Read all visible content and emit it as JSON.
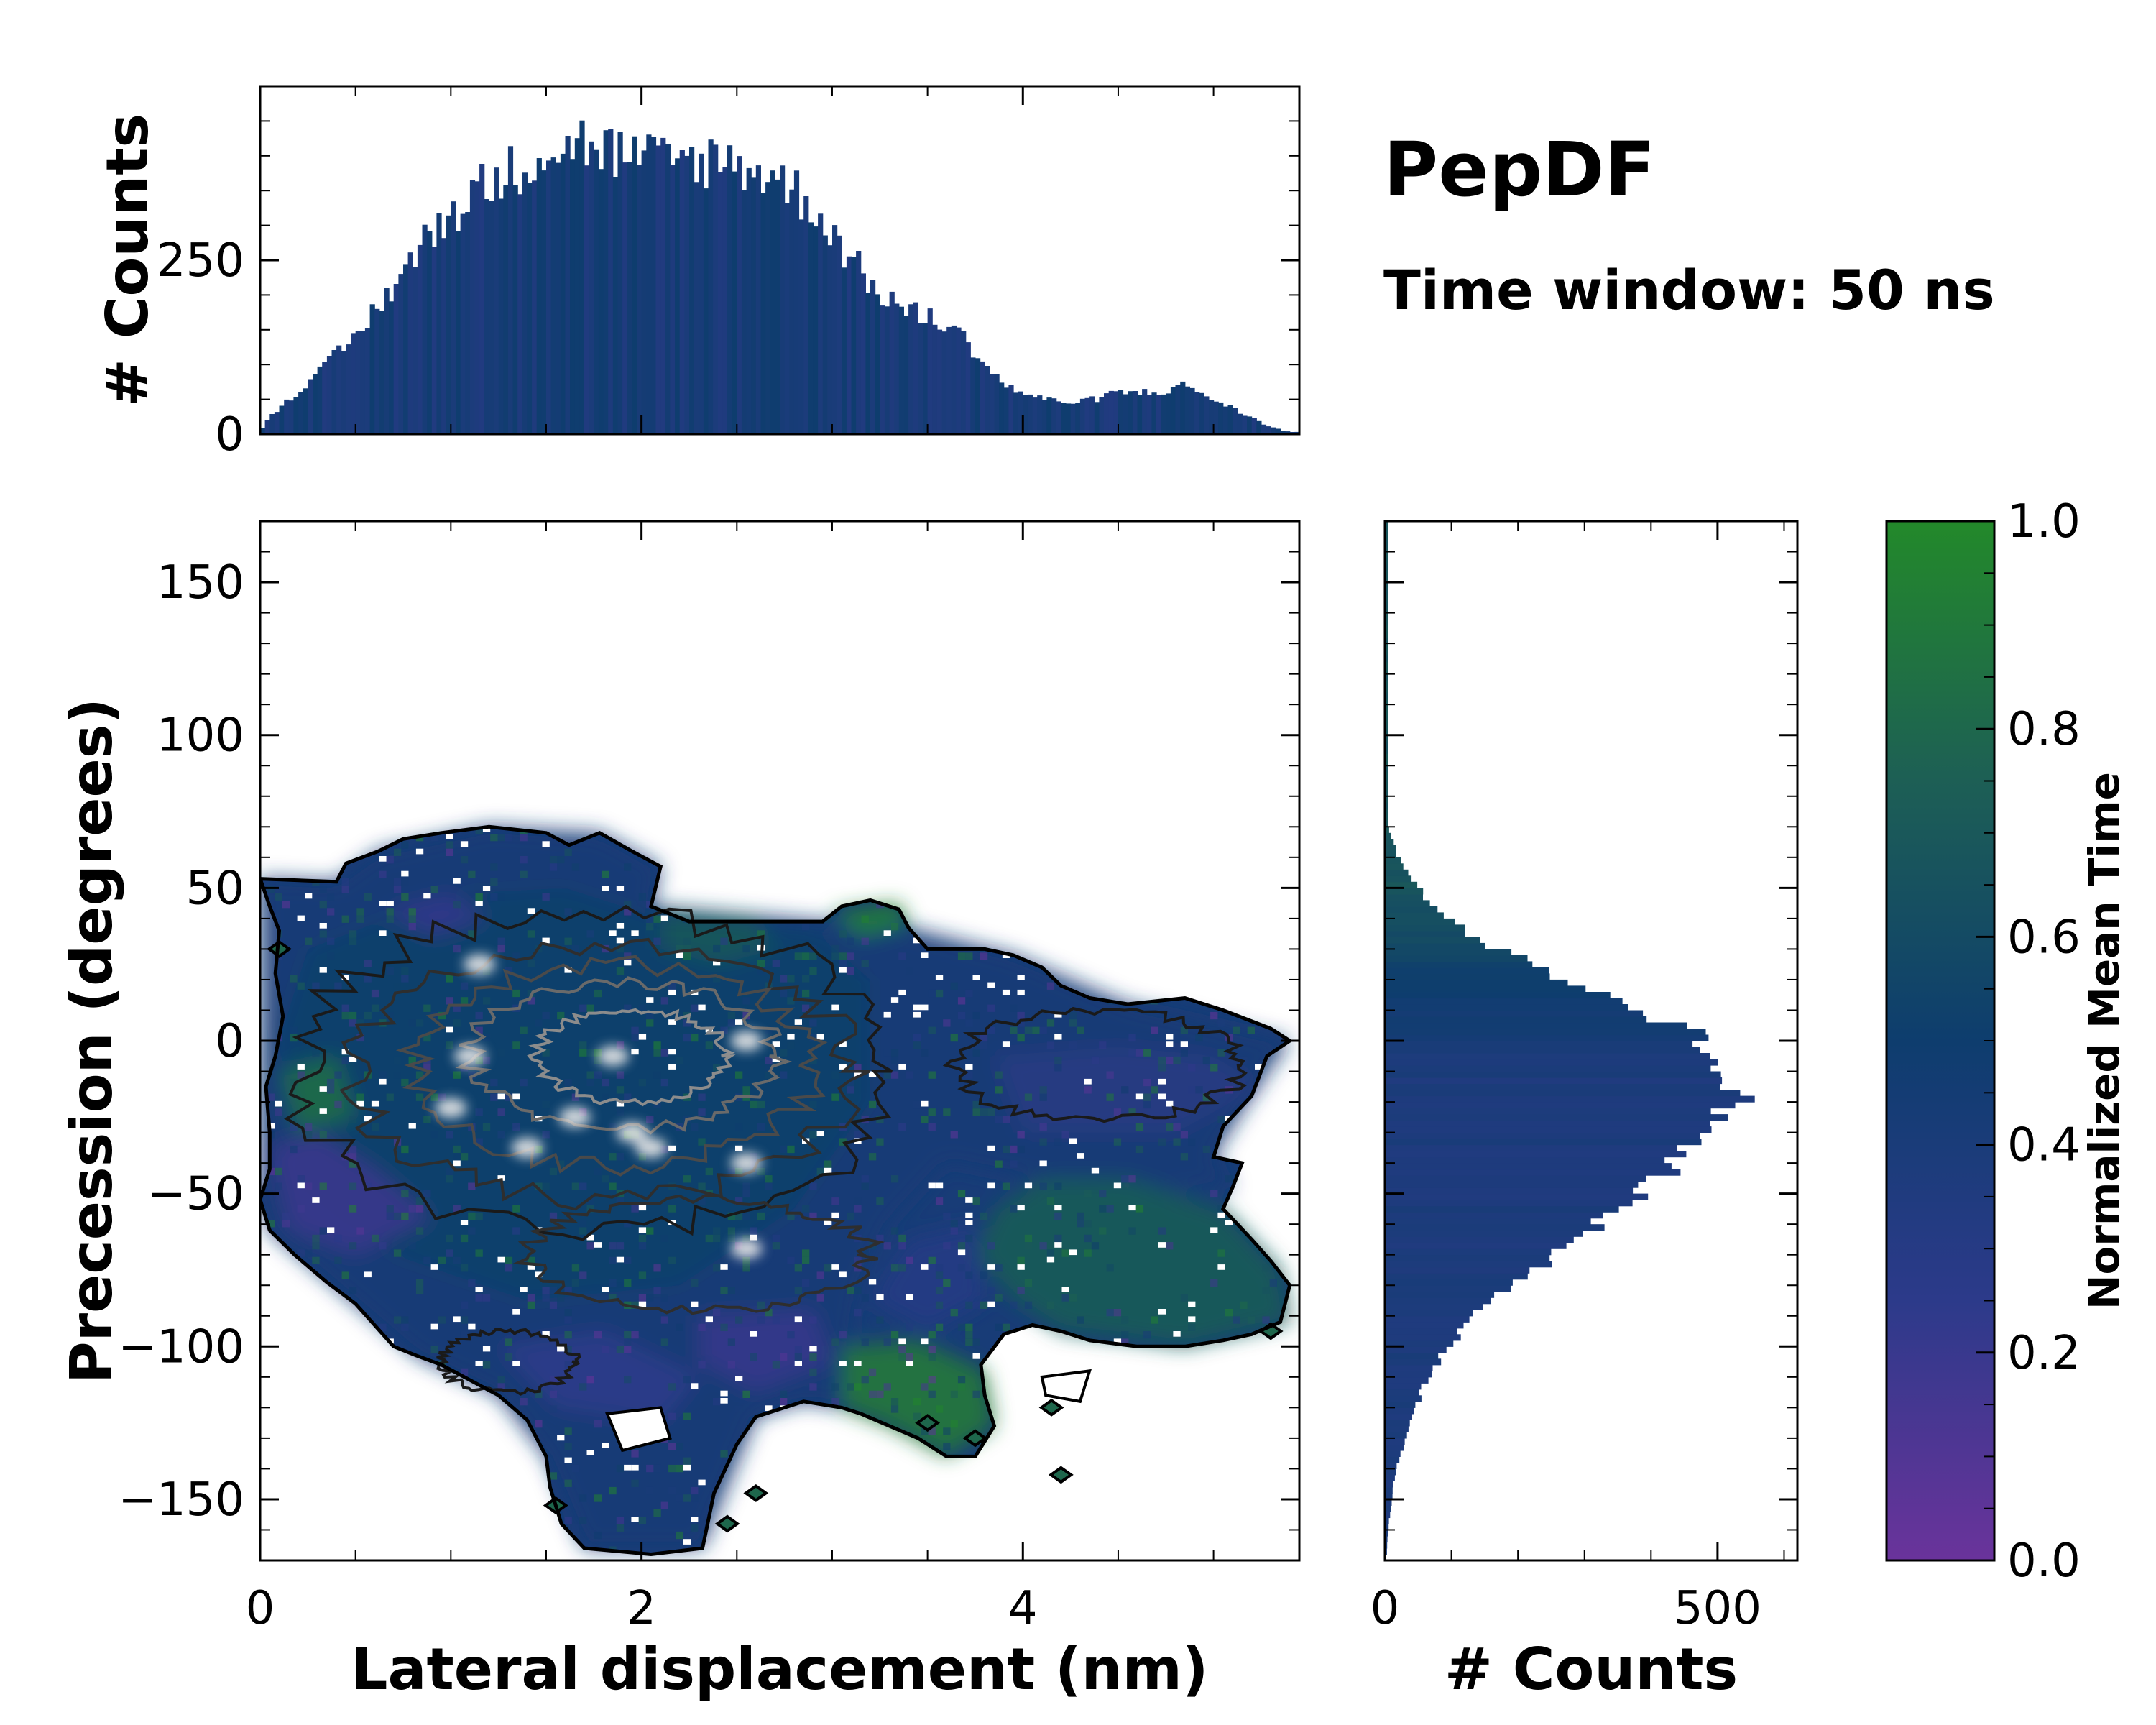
{
  "chart_data": {
    "type": "joint-histogram",
    "colors": {
      "low": "#6a339b",
      "mid_low": "#2c3a8a",
      "mid": "#0e3d6e",
      "mid_high": "#1d5f55",
      "high": "#23892a"
    },
    "annotation": {
      "title": "PepDF",
      "subtitle": "Time window: 50 ns"
    },
    "main": {
      "type": "heatmap",
      "xlabel": "Lateral displacement (nm)",
      "ylabel": "Precession (degrees)",
      "xlim": [
        0,
        5.45
      ],
      "ylim": [
        -170,
        170
      ],
      "xticks": [
        0,
        2,
        4
      ],
      "xtick_labels": [
        "0",
        "2",
        "4"
      ],
      "yticks": [
        -150,
        -100,
        -50,
        0,
        50,
        100,
        150
      ],
      "ytick_labels": [
        "−150",
        "−100",
        "−50",
        "0",
        "50",
        "100",
        "150"
      ],
      "outline": [
        [
          0,
          53
        ],
        [
          0.4,
          52
        ],
        [
          0.45,
          58
        ],
        [
          0.62,
          62
        ],
        [
          0.75,
          66
        ],
        [
          0.95,
          68
        ],
        [
          1.2,
          70
        ],
        [
          1.5,
          68
        ],
        [
          1.62,
          64
        ],
        [
          1.78,
          68
        ],
        [
          1.95,
          62
        ],
        [
          2.1,
          57
        ],
        [
          2.05,
          44
        ],
        [
          2.25,
          39
        ],
        [
          2.95,
          39
        ],
        [
          3.05,
          44
        ],
        [
          3.2,
          46
        ],
        [
          3.35,
          43
        ],
        [
          3.4,
          37
        ],
        [
          3.5,
          30
        ],
        [
          3.6,
          30
        ],
        [
          3.8,
          30
        ],
        [
          3.95,
          28
        ],
        [
          4.1,
          24
        ],
        [
          4.2,
          18
        ],
        [
          4.35,
          14
        ],
        [
          4.55,
          12
        ],
        [
          4.85,
          14
        ],
        [
          5.05,
          10
        ],
        [
          5.3,
          4
        ],
        [
          5.4,
          0
        ],
        [
          5.28,
          -5
        ],
        [
          5.2,
          -18
        ],
        [
          5.05,
          -28
        ],
        [
          5.0,
          -38
        ],
        [
          5.15,
          -40
        ],
        [
          5.1,
          -48
        ],
        [
          5.05,
          -55
        ],
        [
          5.2,
          -65
        ],
        [
          5.3,
          -72
        ],
        [
          5.4,
          -80
        ],
        [
          5.35,
          -92
        ],
        [
          5.2,
          -96
        ],
        [
          5.05,
          -98
        ],
        [
          4.85,
          -100
        ],
        [
          4.6,
          -100
        ],
        [
          4.35,
          -98
        ],
        [
          4.2,
          -95
        ],
        [
          4.05,
          -93
        ],
        [
          3.9,
          -96
        ],
        [
          3.78,
          -106
        ],
        [
          3.8,
          -116
        ],
        [
          3.85,
          -126
        ],
        [
          3.75,
          -136
        ],
        [
          3.6,
          -136
        ],
        [
          3.45,
          -130
        ],
        [
          3.3,
          -126
        ],
        [
          3.15,
          -122
        ],
        [
          3.05,
          -120
        ],
        [
          2.85,
          -118
        ],
        [
          2.6,
          -123
        ],
        [
          2.5,
          -132
        ],
        [
          2.38,
          -148
        ],
        [
          2.32,
          -166
        ],
        [
          2.05,
          -168
        ],
        [
          1.7,
          -166
        ],
        [
          1.58,
          -158
        ],
        [
          1.52,
          -146
        ],
        [
          1.5,
          -136
        ],
        [
          1.4,
          -124
        ],
        [
          1.25,
          -116
        ],
        [
          1.1,
          -111
        ],
        [
          0.95,
          -106
        ],
        [
          0.82,
          -103
        ],
        [
          0.7,
          -100
        ],
        [
          0.6,
          -93
        ],
        [
          0.5,
          -86
        ],
        [
          0.35,
          -79
        ],
        [
          0.18,
          -70
        ],
        [
          0.05,
          -62
        ],
        [
          0,
          -52
        ],
        [
          0.05,
          -42
        ],
        [
          0.05,
          -30
        ],
        [
          0.03,
          -15
        ],
        [
          0.08,
          -5
        ],
        [
          0.12,
          8
        ],
        [
          0.08,
          22
        ],
        [
          0.1,
          36
        ],
        [
          0.05,
          44
        ],
        [
          0,
          53
        ]
      ],
      "color_regions": [
        {
          "points": [
            [
              0,
              53
            ],
            [
              0.4,
              52
            ],
            [
              0.62,
              62
            ],
            [
              1.2,
              70
            ],
            [
              1.78,
              68
            ],
            [
              2.1,
              57
            ],
            [
              2.05,
              44
            ],
            [
              2.95,
              39
            ],
            [
              3.4,
              37
            ],
            [
              3.95,
              28
            ],
            [
              4.55,
              12
            ],
            [
              5.4,
              0
            ],
            [
              5.2,
              -18
            ],
            [
              5.0,
              -38
            ],
            [
              5.1,
              -48
            ],
            [
              4.6,
              -50
            ],
            [
              4.0,
              -45
            ],
            [
              3.6,
              -40
            ],
            [
              3.3,
              -60
            ],
            [
              3.15,
              -80
            ],
            [
              3.05,
              -120
            ],
            [
              2.85,
              -118
            ],
            [
              2.6,
              -123
            ],
            [
              2.32,
              -166
            ],
            [
              1.7,
              -166
            ],
            [
              1.5,
              -136
            ],
            [
              1.25,
              -116
            ],
            [
              0.82,
              -103
            ],
            [
              0.5,
              -86
            ],
            [
              0.05,
              -62
            ],
            [
              0,
              -52
            ]
          ],
          "value": 0.42
        },
        {
          "points": [
            [
              0.25,
              30
            ],
            [
              1.0,
              48
            ],
            [
              1.6,
              50
            ],
            [
              2.1,
              40
            ],
            [
              2.9,
              36
            ],
            [
              3.2,
              20
            ],
            [
              3.2,
              -20
            ],
            [
              2.8,
              -55
            ],
            [
              2.2,
              -80
            ],
            [
              1.4,
              -85
            ],
            [
              0.7,
              -70
            ],
            [
              0.2,
              -45
            ],
            [
              0.1,
              0
            ]
          ],
          "value": 0.52
        },
        {
          "points": [
            [
              0.65,
              42
            ],
            [
              1.0,
              48
            ],
            [
              1.2,
              40
            ],
            [
              0.9,
              34
            ]
          ],
          "value": 0.22
        },
        {
          "points": [
            [
              2.1,
              42
            ],
            [
              2.6,
              40
            ],
            [
              2.7,
              30
            ],
            [
              2.4,
              25
            ],
            [
              2.1,
              30
            ]
          ],
          "value": 0.7
        },
        {
          "points": [
            [
              3.0,
              42
            ],
            [
              3.35,
              45
            ],
            [
              3.4,
              38
            ],
            [
              3.15,
              34
            ]
          ],
          "value": 0.95
        },
        {
          "points": [
            [
              0.05,
              -35
            ],
            [
              0.3,
              -30
            ],
            [
              0.6,
              -42
            ],
            [
              0.9,
              -58
            ],
            [
              0.5,
              -70
            ],
            [
              0.15,
              -62
            ]
          ],
          "value": 0.2
        },
        {
          "points": [
            [
              0.1,
              -10
            ],
            [
              0.4,
              -5
            ],
            [
              0.5,
              -25
            ],
            [
              0.2,
              -30
            ]
          ],
          "value": 0.82
        },
        {
          "points": [
            [
              1.25,
              -100
            ],
            [
              1.8,
              -95
            ],
            [
              2.3,
              -110
            ],
            [
              2.1,
              -125
            ],
            [
              1.55,
              -120
            ]
          ],
          "value": 0.24
        },
        {
          "points": [
            [
              2.3,
              -90
            ],
            [
              2.9,
              -88
            ],
            [
              3.0,
              -105
            ],
            [
              2.6,
              -115
            ],
            [
              2.3,
              -105
            ]
          ],
          "value": 0.22
        },
        {
          "points": [
            [
              3.85,
              -5
            ],
            [
              4.5,
              -2
            ],
            [
              5.0,
              -5
            ],
            [
              5.25,
              -15
            ],
            [
              4.8,
              -30
            ],
            [
              4.0,
              -30
            ]
          ],
          "value": 0.3
        },
        {
          "points": [
            [
              4.1,
              -45
            ],
            [
              4.55,
              -45
            ],
            [
              5.05,
              -55
            ],
            [
              5.35,
              -75
            ],
            [
              5.4,
              -92
            ],
            [
              4.85,
              -100
            ],
            [
              4.2,
              -95
            ],
            [
              3.95,
              -85
            ],
            [
              3.75,
              -70
            ],
            [
              3.85,
              -55
            ]
          ],
          "value": 0.72
        },
        {
          "points": [
            [
              3.05,
              -100
            ],
            [
              3.45,
              -98
            ],
            [
              3.8,
              -108
            ],
            [
              3.85,
              -126
            ],
            [
              3.6,
              -136
            ],
            [
              3.3,
              -126
            ],
            [
              3.05,
              -120
            ]
          ],
          "value": 0.9
        },
        {
          "points": [
            [
              3.4,
              -65
            ],
            [
              3.75,
              -60
            ],
            [
              3.8,
              -85
            ],
            [
              3.5,
              -95
            ],
            [
              3.2,
              -85
            ]
          ],
          "value": 0.3
        }
      ],
      "holes": [
        [
          [
            1.82,
            -122
          ],
          [
            2.1,
            -120
          ],
          [
            2.15,
            -130
          ],
          [
            1.9,
            -134
          ]
        ],
        [
          [
            4.1,
            -110
          ],
          [
            4.35,
            -108
          ],
          [
            4.3,
            -118
          ],
          [
            4.12,
            -116
          ]
        ]
      ],
      "islands": [
        [
          3.5,
          -125
        ],
        [
          3.75,
          -130
        ],
        [
          4.15,
          -120
        ],
        [
          4.2,
          -142
        ],
        [
          2.45,
          -158
        ],
        [
          2.6,
          -148
        ],
        [
          5.3,
          -95
        ],
        [
          1.55,
          -152
        ],
        [
          0.1,
          30
        ]
      ],
      "density_contours": [
        {
          "cx": 1.75,
          "cy": -10,
          "rx": 1.55,
          "ry": 52,
          "level": 1
        },
        {
          "cx": 1.8,
          "cy": -10,
          "rx": 1.3,
          "ry": 42,
          "level": 2
        },
        {
          "cx": 1.85,
          "cy": -8,
          "rx": 1.05,
          "ry": 33,
          "level": 3
        },
        {
          "cx": 1.9,
          "cy": -5,
          "rx": 0.8,
          "ry": 24,
          "level": 4
        },
        {
          "cx": 1.95,
          "cy": -5,
          "rx": 0.5,
          "ry": 15,
          "level": 5
        },
        {
          "cx": 4.4,
          "cy": -8,
          "rx": 0.75,
          "ry": 18,
          "level": 1
        },
        {
          "cx": 2.3,
          "cy": -70,
          "rx": 0.9,
          "ry": 18,
          "level": 2
        },
        {
          "cx": 1.3,
          "cy": -105,
          "rx": 0.35,
          "ry": 10,
          "level": 1
        }
      ],
      "bright_spots": [
        [
          1.15,
          25
        ],
        [
          1.1,
          -5
        ],
        [
          1.0,
          -22
        ],
        [
          1.65,
          -25
        ],
        [
          1.95,
          -30
        ],
        [
          2.55,
          0
        ],
        [
          2.55,
          -40
        ],
        [
          2.55,
          -68
        ],
        [
          2.05,
          -35
        ],
        [
          1.4,
          -35
        ],
        [
          1.85,
          -5
        ]
      ]
    },
    "top_hist": {
      "type": "bar",
      "ylabel": "# Counts",
      "ylim": [
        0,
        500
      ],
      "yticks": [
        0,
        250
      ],
      "ytick_labels": [
        "0",
        "250"
      ],
      "bin_width": 0.025,
      "control_x": [
        0,
        0.1,
        0.3,
        0.5,
        0.7,
        0.9,
        1.1,
        1.3,
        1.5,
        1.7,
        1.9,
        2.1,
        2.3,
        2.5,
        2.7,
        2.9,
        3.05,
        3.2,
        3.4,
        3.6,
        3.75,
        3.9,
        4.1,
        4.3,
        4.5,
        4.7,
        4.85,
        5.0,
        5.15,
        5.3,
        5.4
      ],
      "control_y": [
        5,
        40,
        85,
        140,
        215,
        290,
        345,
        375,
        410,
        420,
        400,
        390,
        395,
        390,
        370,
        330,
        270,
        215,
        175,
        160,
        120,
        70,
        50,
        45,
        60,
        60,
        70,
        50,
        30,
        10,
        3
      ]
    },
    "right_hist": {
      "type": "barh",
      "xlabel": "# Counts",
      "xlim": [
        0,
        620
      ],
      "xticks": [
        0,
        500
      ],
      "xtick_labels": [
        "0",
        "500"
      ],
      "bin_width": 2,
      "control_y": [
        -170,
        -160,
        -150,
        -140,
        -130,
        -120,
        -110,
        -100,
        -90,
        -80,
        -70,
        -60,
        -50,
        -40,
        -30,
        -20,
        -10,
        0,
        10,
        20,
        30,
        40,
        50,
        60,
        70
      ],
      "control_x": [
        2,
        5,
        10,
        18,
        30,
        45,
        65,
        95,
        135,
        190,
        255,
        330,
        395,
        445,
        490,
        520,
        530,
        480,
        380,
        280,
        170,
        90,
        50,
        20,
        5
      ]
    },
    "colorbar": {
      "label": "Normalized Mean Time",
      "range": [
        0,
        1
      ],
      "ticks": [
        0.0,
        0.2,
        0.4,
        0.6,
        0.8,
        1.0
      ],
      "tick_labels": [
        "0.0",
        "0.2",
        "0.4",
        "0.6",
        "0.8",
        "1.0"
      ]
    }
  }
}
